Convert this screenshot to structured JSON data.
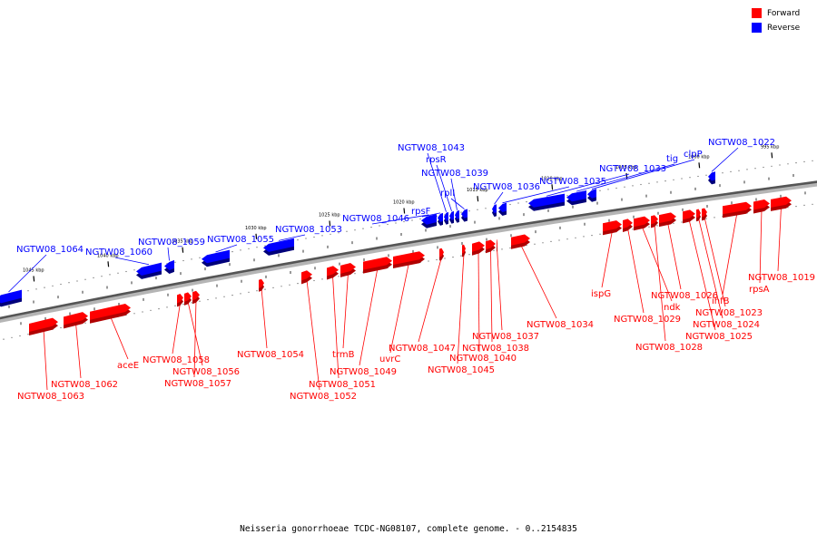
{
  "legend": {
    "forward_label": "Forward",
    "reverse_label": "Reverse",
    "forward_color": "#ff0000",
    "reverse_color": "#0000ff"
  },
  "caption": "Neisseria gonorrhoeae TCDC-NG08107, complete genome. - 0..2154835",
  "ticks": [
    "1045 kbp",
    "1040 kbp",
    "1035 kbp",
    "1030 kbp",
    "1025 kbp",
    "1020 kbp",
    "1015 kbp",
    "1010 kbp",
    "1005 kbp",
    "1000 kbp",
    "995 kbp"
  ],
  "reverse_genes": [
    {
      "label": "NGTW08_1064"
    },
    {
      "label": "NGTW08_1060"
    },
    {
      "label": "NGTW08_1059"
    },
    {
      "label": "NGTW08_1055"
    },
    {
      "label": "NGTW08_1053"
    },
    {
      "label": "NGTW08_1046"
    },
    {
      "label": "rpsF"
    },
    {
      "label": "NGTW08_1043"
    },
    {
      "label": "rpsR"
    },
    {
      "label": "NGTW08_1039"
    },
    {
      "label": "rplI"
    },
    {
      "label": "NGTW08_1036"
    },
    {
      "label": "NGTW08_1035"
    },
    {
      "label": "NGTW08_1033"
    },
    {
      "label": "tig"
    },
    {
      "label": "clpP"
    },
    {
      "label": "NGTW08_1022"
    }
  ],
  "forward_genes": [
    {
      "label": "NGTW08_1063"
    },
    {
      "label": "NGTW08_1062"
    },
    {
      "label": "aceE"
    },
    {
      "label": "NGTW08_1058"
    },
    {
      "label": "NGTW08_1056"
    },
    {
      "label": "NGTW08_1057"
    },
    {
      "label": "NGTW08_1054"
    },
    {
      "label": "NGTW08_1052"
    },
    {
      "label": "NGTW08_1051"
    },
    {
      "label": "trmB"
    },
    {
      "label": "NGTW08_1049"
    },
    {
      "label": "uvrC"
    },
    {
      "label": "NGTW08_1047"
    },
    {
      "label": "NGTW08_1045"
    },
    {
      "label": "NGTW08_1040"
    },
    {
      "label": "NGTW08_1038"
    },
    {
      "label": "NGTW08_1037"
    },
    {
      "label": "NGTW08_1034"
    },
    {
      "label": "ispG"
    },
    {
      "label": "NGTW08_1029"
    },
    {
      "label": "ndk"
    },
    {
      "label": "NGTW08_1028"
    },
    {
      "label": "NGTW08_1026"
    },
    {
      "label": "NGTW08_1025"
    },
    {
      "label": "NGTW08_1024"
    },
    {
      "label": "NGTW08_1023"
    },
    {
      "label": "ihfB"
    },
    {
      "label": "rpsA"
    },
    {
      "label": "NGTW08_1019"
    }
  ]
}
